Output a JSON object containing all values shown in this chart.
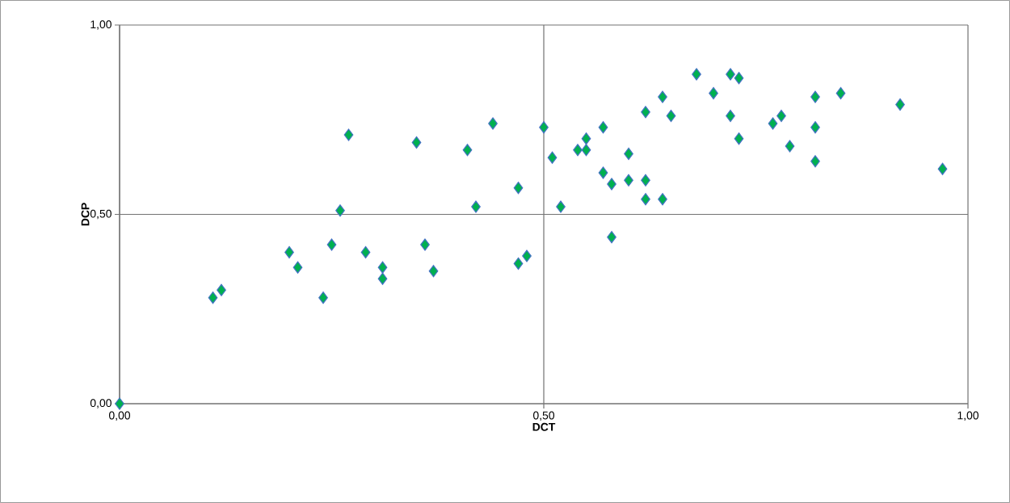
{
  "chart_data": {
    "type": "scatter",
    "xlabel": "DCT",
    "ylabel": "DCP",
    "x": [
      0,
      0.11,
      0.12,
      0.2,
      0.21,
      0.24,
      0.25,
      0.26,
      0.27,
      0.29,
      0.31,
      0.31,
      0.35,
      0.36,
      0.37,
      0.41,
      0.42,
      0.44,
      0.47,
      0.47,
      0.48,
      0.5,
      0.51,
      0.52,
      0.54,
      0.55,
      0.55,
      0.57,
      0.57,
      0.58,
      0.58,
      0.6,
      0.6,
      0.62,
      0.62,
      0.62,
      0.64,
      0.64,
      0.65,
      0.68,
      0.7,
      0.72,
      0.72,
      0.73,
      0.73,
      0.77,
      0.78,
      0.79,
      0.82,
      0.82,
      0.82,
      0.85,
      0.92,
      0.97
    ],
    "values": [
      0,
      0.28,
      0.3,
      0.4,
      0.36,
      0.28,
      0.42,
      0.51,
      0.71,
      0.4,
      0.36,
      0.33,
      0.69,
      0.42,
      0.35,
      0.67,
      0.52,
      0.74,
      0.57,
      0.37,
      0.39,
      0.73,
      0.65,
      0.52,
      0.67,
      0.67,
      0.7,
      0.73,
      0.61,
      0.58,
      0.44,
      0.66,
      0.59,
      0.77,
      0.59,
      0.54,
      0.81,
      0.54,
      0.76,
      0.87,
      0.82,
      0.87,
      0.76,
      0.86,
      0.7,
      0.74,
      0.76,
      0.68,
      0.81,
      0.73,
      0.64,
      0.82,
      0.79,
      0.62
    ],
    "color": "#00b050",
    "marker": "diamond",
    "xlim": [
      0,
      1
    ],
    "ylim": [
      0,
      1
    ],
    "xticks": [
      {
        "value": 0,
        "label": "0,00"
      },
      {
        "value": 0.5,
        "label": "0,50"
      },
      {
        "value": 1,
        "label": "1,00"
      }
    ],
    "yticks": [
      {
        "value": 0,
        "label": "0,00"
      },
      {
        "value": 0.5,
        "label": "0,50"
      },
      {
        "value": 1,
        "label": "1,00"
      }
    ],
    "grid": true
  }
}
